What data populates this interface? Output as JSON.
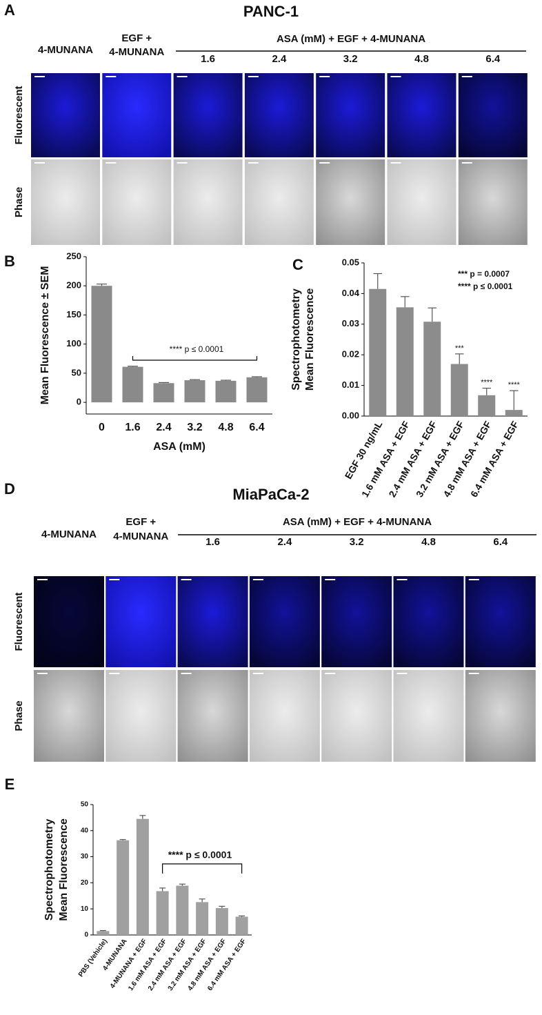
{
  "panel_labels": [
    "A",
    "B",
    "C",
    "D",
    "E"
  ],
  "image_panels": [
    {
      "title": "PANC-1",
      "first_column": "4-MUNANA",
      "second_column": [
        "EGF +",
        "4-MUNANA"
      ],
      "group_header": "ASA (mM) + EGF + 4-MUNANA",
      "concentrations": [
        "1.6",
        "2.4",
        "3.2",
        "4.8",
        "6.4"
      ],
      "rows": [
        "Fluorescent",
        "Phase"
      ]
    },
    {
      "title": "MiaPaCa-2",
      "first_column": "4-MUNANA",
      "second_column": [
        "EGF +",
        "4-MUNANA"
      ],
      "group_header": "ASA (mM) + EGF + 4-MUNANA",
      "concentrations": [
        "1.6",
        "2.4",
        "3.2",
        "4.8",
        "6.4"
      ],
      "rows": [
        "Fluorescent",
        "Phase"
      ]
    }
  ],
  "chart_data": [
    {
      "type": "bar",
      "ylabel": [
        "Mean Fluorescence ± SEM"
      ],
      "xlabel": "ASA (mM)",
      "categories": [
        "0",
        "1.6",
        "2.4",
        "3.2",
        "4.8",
        "6.4"
      ],
      "values": [
        200,
        61,
        33,
        38,
        37,
        43
      ],
      "errors": [
        3,
        1,
        1,
        1,
        1,
        1
      ],
      "color": "#8a8a8a",
      "ylim": [
        -20,
        250
      ],
      "yticks": [
        0,
        50,
        100,
        150,
        200,
        250
      ],
      "annotation": "**** p ≤ 0.0001"
    },
    {
      "type": "bar",
      "ylabel": [
        "Spectrophotometry",
        "Mean Fluorescence"
      ],
      "categories": [
        "EGF 30 ng/mL",
        "1.6 mM ASA + EGF",
        "2.4 mM ASA + EGF",
        "3.2 mM ASA + EGF",
        "4.8 mM ASA + EGF",
        "6.4 mM ASA + EGF"
      ],
      "values": [
        0.0415,
        0.0355,
        0.0308,
        0.017,
        0.0068,
        0.002
      ],
      "errors": [
        0.005,
        0.0035,
        0.0045,
        0.0033,
        0.0023,
        0.0063
      ],
      "significance": [
        null,
        null,
        null,
        "***",
        "****",
        "****"
      ],
      "color": "#8c8c8c",
      "ylim": [
        0,
        0.05
      ],
      "yticks": [
        {
          "value": 0,
          "label": "0.00"
        },
        {
          "value": 0.01,
          "label": "0.01"
        },
        {
          "value": 0.02,
          "label": "0.02"
        },
        {
          "value": 0.03,
          "label": "0.03"
        },
        {
          "value": 0.04,
          "label": "0.04"
        },
        {
          "value": 0.05,
          "label": "0.05"
        }
      ],
      "notes": [
        "***  p = 0.0007",
        "****  p ≤ 0.0001"
      ]
    },
    {
      "type": "bar",
      "ylabel": [
        "Spectrophotometry",
        "Mean Fluorescence"
      ],
      "categories": [
        "PBS (Vehicle)",
        "4-MUNANA",
        "4-MUNANA + EGF",
        "1.6 mM ASA + EGF",
        "2.4 mM ASA + EGF",
        "3.2 mM ASA + EGF",
        "4.8 mM ASA + EGF",
        "6.4 mM ASA + EGF"
      ],
      "values": [
        1.5,
        36.3,
        44.5,
        16.8,
        18.9,
        12.6,
        10.3,
        7.0
      ],
      "errors": [
        0.2,
        0.3,
        1.3,
        1.2,
        0.6,
        1.2,
        0.7,
        0.3
      ],
      "color": "#a0a0a0",
      "ylim": [
        0,
        50
      ],
      "yticks": [
        0,
        10,
        20,
        30,
        40,
        50
      ],
      "annotation": "**** p ≤ 0.0001"
    }
  ]
}
